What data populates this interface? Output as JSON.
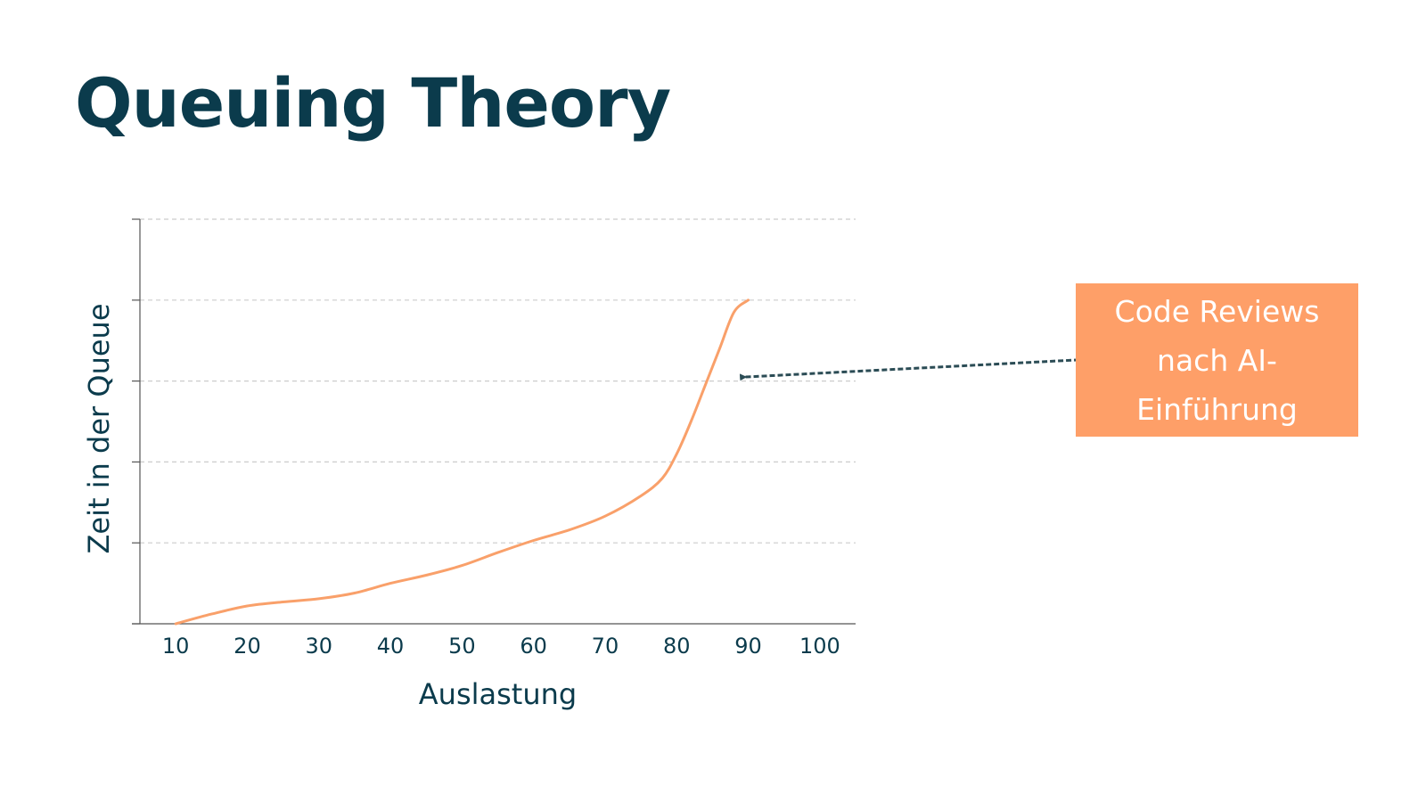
{
  "slide": {
    "title": "Queuing Theory"
  },
  "chart_data": {
    "type": "line",
    "x_ticks": [
      "10",
      "20",
      "30",
      "40",
      "50",
      "60",
      "70",
      "80",
      "90",
      "100"
    ],
    "xlabel": "Auslastung",
    "ylabel": "Zeit in der Queue",
    "xlim": [
      5,
      105
    ],
    "ylim": [
      0,
      5
    ],
    "grid": true,
    "series": [
      {
        "color": "#f9a06a",
        "x": [
          10,
          15,
          20,
          25,
          30,
          35,
          40,
          45,
          50,
          55,
          60,
          65,
          70,
          75,
          78,
          80,
          82,
          84,
          86,
          88,
          90
        ],
        "y": [
          0,
          0.12,
          0.22,
          0.27,
          0.31,
          0.38,
          0.5,
          0.6,
          0.72,
          0.88,
          1.03,
          1.16,
          1.33,
          1.58,
          1.8,
          2.1,
          2.5,
          2.95,
          3.4,
          3.85,
          4.0
        ]
      }
    ]
  },
  "annotation": {
    "text": "Code Reviews nach AI-Einführung",
    "target": {
      "x": 90,
      "y": 3.05
    },
    "arrow_color": "#2b4c55"
  },
  "colors": {
    "title": "#0b3b4c",
    "axis": "#555555",
    "grid": "#cccccc",
    "callout_bg": "#fe9f68",
    "callout_text": "#ffffff"
  }
}
